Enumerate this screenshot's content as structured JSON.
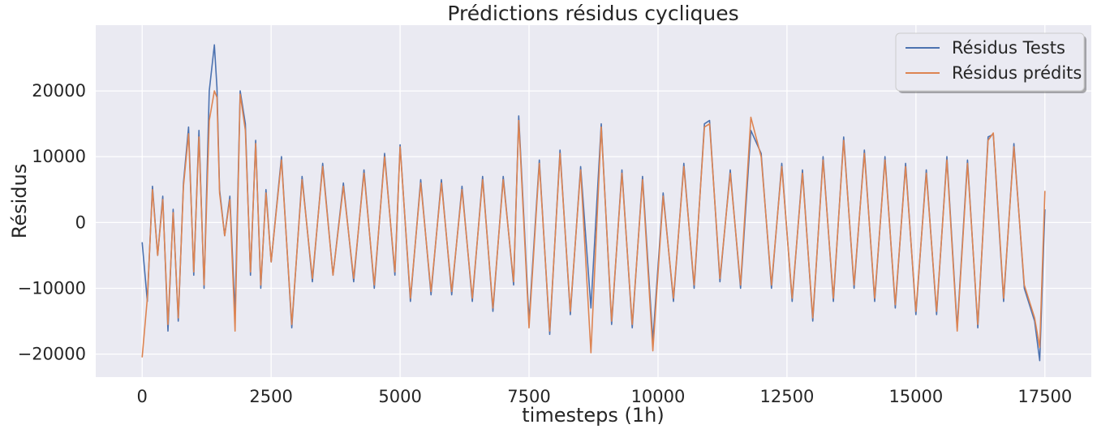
{
  "chart_data": {
    "type": "line",
    "title": "Prédictions résidus cycliques",
    "xlabel": "timesteps (1h)",
    "ylabel": "Résidus",
    "xlim": [
      -900,
      18400
    ],
    "ylim": [
      -23500,
      30000
    ],
    "xticks": [
      0,
      2500,
      5000,
      7500,
      10000,
      12500,
      15000,
      17500
    ],
    "xtick_labels": [
      "0",
      "2500",
      "5000",
      "7500",
      "10000",
      "12500",
      "15000",
      "17500"
    ],
    "yticks": [
      -20000,
      -10000,
      0,
      10000,
      20000
    ],
    "ytick_labels": [
      "−20000",
      "−10000",
      "0",
      "10000",
      "20000"
    ],
    "grid": true,
    "legend_position": "top-right",
    "series": [
      {
        "name": "Résidus Tests",
        "color": "#4c72b0",
        "x": [
          0,
          100,
          200,
          300,
          400,
          500,
          600,
          700,
          800,
          900,
          1000,
          1100,
          1200,
          1300,
          1400,
          1450,
          1500,
          1600,
          1700,
          1800,
          1900,
          2000,
          2100,
          2200,
          2300,
          2400,
          2500,
          2700,
          2900,
          3100,
          3300,
          3500,
          3700,
          3900,
          4100,
          4300,
          4500,
          4700,
          4900,
          5000,
          5200,
          5400,
          5600,
          5800,
          6000,
          6200,
          6400,
          6600,
          6800,
          7000,
          7200,
          7300,
          7500,
          7700,
          7900,
          8100,
          8300,
          8500,
          8700,
          8900,
          9100,
          9300,
          9500,
          9700,
          9900,
          10100,
          10300,
          10500,
          10700,
          10900,
          11000,
          11200,
          11400,
          11600,
          11800,
          12000,
          12200,
          12400,
          12600,
          12800,
          13000,
          13200,
          13400,
          13600,
          13800,
          14000,
          14200,
          14400,
          14600,
          14800,
          15000,
          15200,
          15400,
          15600,
          15800,
          16000,
          16200,
          16400,
          16500,
          16700,
          16900,
          17100,
          17300,
          17400,
          17500
        ],
        "y": [
          -3000,
          -12000,
          5500,
          -5000,
          4000,
          -16500,
          2000,
          -15000,
          6000,
          14500,
          -8000,
          14000,
          -10000,
          20000,
          27000,
          20500,
          5000,
          -2000,
          4000,
          -14000,
          20000,
          15000,
          -8000,
          12500,
          -10000,
          5000,
          -6000,
          10000,
          -16000,
          7000,
          -9000,
          9000,
          -8000,
          6000,
          -9000,
          8000,
          -10000,
          10500,
          -8000,
          11800,
          -12000,
          6500,
          -11000,
          6500,
          -11000,
          5500,
          -12000,
          7000,
          -13500,
          7000,
          -9500,
          16200,
          -15000,
          9500,
          -17000,
          11000,
          -14000,
          8500,
          -13000,
          15000,
          -15500,
          8000,
          -16000,
          7000,
          -18000,
          4500,
          -12000,
          9000,
          -10000,
          15000,
          15500,
          -9000,
          8000,
          -10000,
          14000,
          10500,
          -10000,
          9000,
          -12000,
          8000,
          -15000,
          10000,
          -12000,
          13000,
          -10000,
          11000,
          -12000,
          10000,
          -13000,
          9000,
          -14000,
          8000,
          -14000,
          10000,
          -16000,
          9500,
          -16000,
          13000,
          13400,
          -12000,
          12000,
          -10000,
          -15000,
          -21000,
          2000
        ]
      },
      {
        "name": "Résidus prédits",
        "color": "#dd8452",
        "x": [
          0,
          100,
          200,
          300,
          400,
          500,
          600,
          700,
          800,
          900,
          1000,
          1100,
          1200,
          1300,
          1400,
          1450,
          1500,
          1600,
          1700,
          1800,
          1900,
          2000,
          2100,
          2200,
          2300,
          2400,
          2500,
          2700,
          2900,
          3100,
          3300,
          3500,
          3700,
          3900,
          4100,
          4300,
          4500,
          4700,
          4900,
          5000,
          5200,
          5400,
          5600,
          5800,
          6000,
          6200,
          6400,
          6600,
          6800,
          7000,
          7200,
          7300,
          7500,
          7700,
          7900,
          8100,
          8300,
          8500,
          8700,
          8900,
          9100,
          9300,
          9500,
          9700,
          9900,
          10100,
          10300,
          10500,
          10700,
          10900,
          11000,
          11200,
          11400,
          11600,
          11800,
          12000,
          12200,
          12400,
          12600,
          12800,
          13000,
          13200,
          13400,
          13600,
          13800,
          14000,
          14200,
          14400,
          14600,
          14800,
          15000,
          15200,
          15400,
          15600,
          15800,
          16000,
          16200,
          16400,
          16500,
          16700,
          16900,
          17100,
          17300,
          17400,
          17500
        ],
        "y": [
          -20500,
          -11500,
          5000,
          -5000,
          3500,
          -15500,
          1500,
          -14500,
          5500,
          13500,
          -7500,
          13000,
          -9500,
          15500,
          20000,
          19000,
          4500,
          -2000,
          3500,
          -16500,
          19500,
          14000,
          -7500,
          12000,
          -9500,
          4500,
          -6000,
          9500,
          -15500,
          6500,
          -8500,
          8500,
          -8000,
          5500,
          -8500,
          7500,
          -9500,
          10000,
          -7500,
          11500,
          -11500,
          6000,
          -10500,
          6000,
          -10500,
          5000,
          -11500,
          6500,
          -13000,
          6500,
          -9000,
          15500,
          -16000,
          9000,
          -16500,
          10500,
          -13500,
          8000,
          -19800,
          14500,
          -15000,
          7500,
          -15500,
          6500,
          -19500,
          4000,
          -11500,
          8500,
          -9500,
          14500,
          15000,
          -8500,
          7500,
          -9500,
          16000,
          10000,
          -9500,
          8500,
          -11500,
          7500,
          -14500,
          9500,
          -11500,
          12500,
          -9500,
          10500,
          -11500,
          9500,
          -12500,
          8500,
          -13500,
          7500,
          -13500,
          9500,
          -16500,
          9000,
          -15500,
          12500,
          13600,
          -11500,
          11500,
          -9500,
          -14500,
          -19000,
          4800
        ]
      }
    ]
  }
}
